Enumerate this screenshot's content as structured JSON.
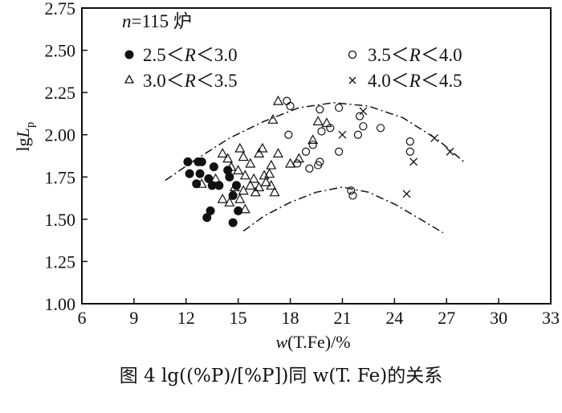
{
  "caption": "图 4   lg((%P)/[%P])同 w(T. Fe)的关系",
  "chart_data": {
    "type": "scatter",
    "xlabel_main": "w",
    "xlabel_rest": "(T.Fe)/%",
    "ylabel_main": "lg",
    "ylabel_L": "L",
    "ylabel_sub": "p",
    "xlim": [
      6,
      33
    ],
    "ylim": [
      1.0,
      2.75
    ],
    "x_ticks": [
      "6",
      "9",
      "12",
      "15",
      "18",
      "21",
      "24",
      "27",
      "30",
      "33"
    ],
    "y_ticks": [
      "1.00",
      "1.25",
      "1.50",
      "1.75",
      "2.00",
      "2.25",
      "2.50",
      "2.75"
    ],
    "annotation": {
      "n_italic": "n",
      "rest": "=115 炉"
    },
    "series": [
      {
        "name": "2.5＜R＜3.0",
        "legend_pre": "2.5＜",
        "legend_R": "R",
        "legend_post": "＜3.0",
        "marker": "filled-circle",
        "points": [
          [
            12.1,
            1.84
          ],
          [
            12.2,
            1.77
          ],
          [
            12.7,
            1.84
          ],
          [
            12.8,
            1.77
          ],
          [
            12.9,
            1.84
          ],
          [
            12.6,
            1.71
          ],
          [
            13.6,
            1.81
          ],
          [
            13.3,
            1.74
          ],
          [
            13.5,
            1.7
          ],
          [
            13.9,
            1.7
          ],
          [
            14.4,
            1.79
          ],
          [
            14.5,
            1.75
          ],
          [
            14.7,
            1.64
          ],
          [
            14.9,
            1.7
          ],
          [
            13.2,
            1.51
          ],
          [
            13.4,
            1.55
          ],
          [
            14.7,
            1.48
          ],
          [
            15.0,
            1.55
          ]
        ]
      },
      {
        "name": "3.0＜R＜3.5",
        "legend_pre": "3.0＜",
        "legend_R": "R",
        "legend_post": "＜3.5",
        "marker": "triangle",
        "points": [
          [
            12.9,
            1.71
          ],
          [
            13.7,
            1.74
          ],
          [
            14.1,
            1.89
          ],
          [
            14.4,
            1.86
          ],
          [
            14.6,
            1.81
          ],
          [
            14.8,
            1.69
          ],
          [
            15.1,
            1.92
          ],
          [
            15.3,
            1.87
          ],
          [
            15.0,
            1.79
          ],
          [
            15.4,
            1.76
          ],
          [
            15.7,
            1.83
          ],
          [
            15.3,
            1.67
          ],
          [
            15.7,
            1.7
          ],
          [
            16.0,
            1.66
          ],
          [
            15.1,
            1.62
          ],
          [
            14.5,
            1.6
          ],
          [
            14.1,
            1.62
          ],
          [
            15.4,
            1.56
          ],
          [
            16.2,
            1.89
          ],
          [
            16.5,
            1.76
          ],
          [
            16.6,
            1.72
          ],
          [
            16.8,
            1.77
          ],
          [
            16.9,
            1.7
          ],
          [
            17.1,
            1.66
          ],
          [
            16.4,
            1.92
          ],
          [
            16.9,
            1.82
          ],
          [
            17.3,
            1.89
          ],
          [
            17.0,
            2.09
          ],
          [
            17.3,
            2.2
          ],
          [
            18.0,
            1.83
          ],
          [
            18.5,
            1.86
          ],
          [
            19.3,
            1.97
          ],
          [
            19.6,
            2.08
          ],
          [
            20.1,
            2.07
          ],
          [
            15.9,
            1.74
          ],
          [
            16.2,
            1.69
          ]
        ]
      },
      {
        "name": "3.5＜R＜4.0",
        "legend_pre": "3.5＜",
        "legend_R": "R",
        "legend_post": "＜4.0",
        "marker": "open-circle",
        "points": [
          [
            17.8,
            2.2
          ],
          [
            18.0,
            2.17
          ],
          [
            17.9,
            2.0
          ],
          [
            18.4,
            1.83
          ],
          [
            18.9,
            1.9
          ],
          [
            19.1,
            1.8
          ],
          [
            19.3,
            1.94
          ],
          [
            19.7,
            1.84
          ],
          [
            19.6,
            1.82
          ],
          [
            19.7,
            2.15
          ],
          [
            19.8,
            2.02
          ],
          [
            20.3,
            2.04
          ],
          [
            20.8,
            2.16
          ],
          [
            20.8,
            1.9
          ],
          [
            21.5,
            1.67
          ],
          [
            21.6,
            1.64
          ],
          [
            21.9,
            2.0
          ],
          [
            22.0,
            2.11
          ],
          [
            22.2,
            2.05
          ],
          [
            23.2,
            2.04
          ],
          [
            24.9,
            1.9
          ],
          [
            24.9,
            1.96
          ]
        ]
      },
      {
        "name": "4.0＜R＜4.5",
        "legend_pre": "4.0＜",
        "legend_R": "R",
        "legend_post": "＜4.5",
        "marker": "cross",
        "points": [
          [
            21.0,
            2.0
          ],
          [
            24.7,
            1.65
          ],
          [
            25.1,
            1.84
          ],
          [
            26.3,
            1.98
          ],
          [
            27.2,
            1.9
          ],
          [
            22.2,
            2.14
          ]
        ]
      }
    ],
    "envelope_curves": [
      {
        "style": "dash-dot",
        "points": [
          [
            10.8,
            1.73
          ],
          [
            12.5,
            1.85
          ],
          [
            14.5,
            1.98
          ],
          [
            16.5,
            2.08
          ],
          [
            18.5,
            2.16
          ],
          [
            20.5,
            2.19
          ],
          [
            22.5,
            2.17
          ],
          [
            24.5,
            2.1
          ],
          [
            26.5,
            1.97
          ],
          [
            28.0,
            1.84
          ]
        ]
      },
      {
        "style": "dash-dot",
        "points": [
          [
            15.3,
            1.43
          ],
          [
            16.5,
            1.52
          ],
          [
            18.0,
            1.6
          ],
          [
            19.5,
            1.66
          ],
          [
            21.0,
            1.69
          ],
          [
            22.5,
            1.66
          ],
          [
            24.0,
            1.59
          ],
          [
            25.5,
            1.5
          ],
          [
            26.8,
            1.42
          ]
        ]
      }
    ],
    "grid": false,
    "legend_position": "top-left (inside plot)"
  }
}
